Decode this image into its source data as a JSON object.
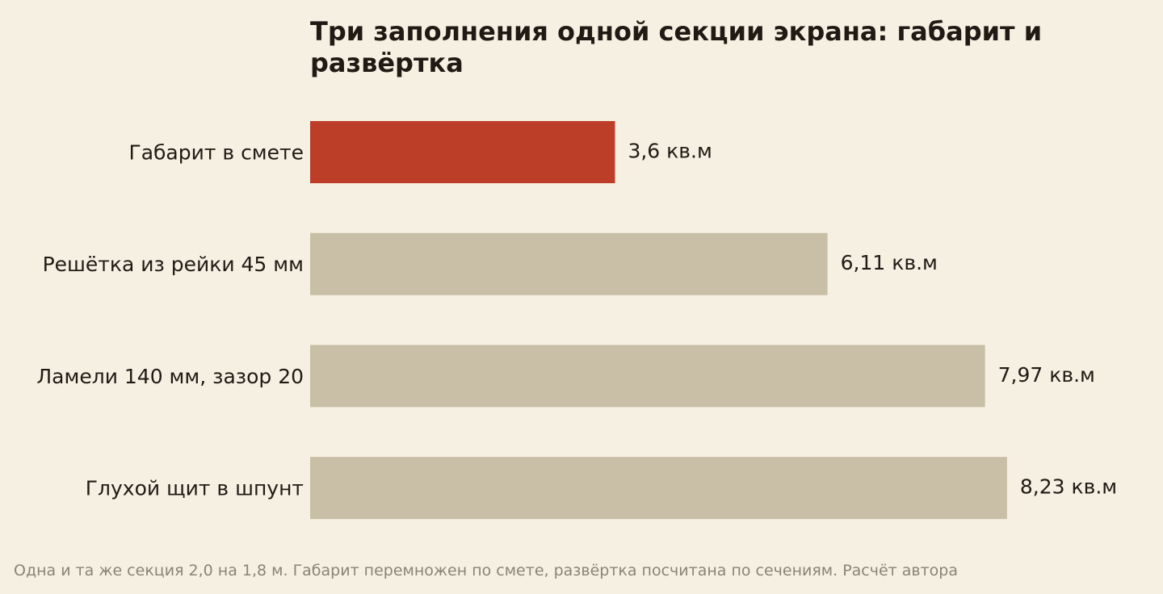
{
  "chart_data": {
    "type": "bar",
    "orientation": "horizontal",
    "title": "Три заполнения одной секции экрана: габарит и развёртка",
    "categories": [
      "Габарит в смете",
      "Решётка из рейки 45 мм",
      "Ламели 140 мм, зазор 20",
      "Глухой щит в шпунт"
    ],
    "values": [
      3.6,
      6.11,
      7.97,
      8.23
    ],
    "value_labels": [
      "3,6 кв.м",
      "6,11 кв.м",
      "7,97 кв.м",
      "8,23 кв.м"
    ],
    "unit": "кв.м",
    "highlight_index": 0,
    "colors": {
      "highlight": "#bc3d28",
      "default": "#c9bfa7",
      "background": "#f6f0e3",
      "text": "#1f1b14",
      "footnote": "#8a8477"
    },
    "grid": false,
    "xaxis_visible": false,
    "footnote": "Одна и та же секция 2,0 на 1,8 м. Габарит перемножен по смете, развёртка посчитана по сечениям. Расчёт автора"
  }
}
